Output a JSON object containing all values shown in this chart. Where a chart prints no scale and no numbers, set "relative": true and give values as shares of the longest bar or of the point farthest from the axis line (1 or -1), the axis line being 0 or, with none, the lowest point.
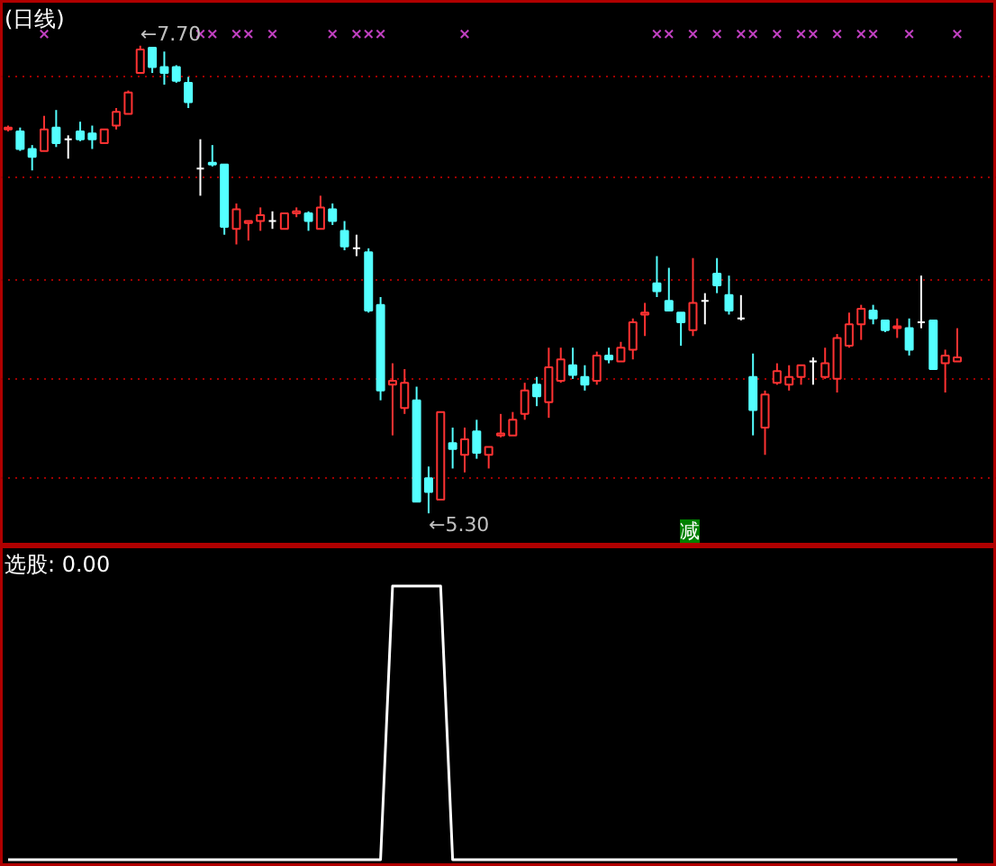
{
  "chart_data": [
    {
      "type": "candlestick",
      "title": "(日线)",
      "categories": [
        null,
        null,
        null,
        null,
        null,
        null,
        null,
        null,
        null,
        null,
        null,
        null,
        null,
        null,
        null,
        null,
        null,
        null,
        null,
        null,
        null,
        null,
        null,
        null,
        null,
        null,
        null,
        null,
        null,
        null,
        null,
        null,
        null,
        null,
        null,
        null,
        null,
        null,
        null,
        null,
        null,
        null,
        null,
        null,
        null,
        null,
        null,
        null,
        null,
        null,
        null,
        null,
        null,
        null,
        null,
        null,
        null,
        null,
        null,
        null,
        null,
        null,
        null,
        null,
        null,
        null,
        null,
        null,
        null,
        null,
        null,
        null,
        null,
        null,
        null,
        null,
        null,
        null,
        null,
        null
      ],
      "ohlc": [
        [
          7.27,
          7.29,
          7.26,
          7.28
        ],
        [
          7.26,
          7.28,
          7.16,
          7.17
        ],
        [
          7.17,
          7.19,
          7.06,
          7.13
        ],
        [
          7.16,
          7.34,
          7.16,
          7.27
        ],
        [
          7.28,
          7.37,
          7.18,
          7.2
        ],
        [
          7.22,
          7.24,
          7.12,
          7.22
        ],
        [
          7.26,
          7.31,
          7.21,
          7.22
        ],
        [
          7.25,
          7.29,
          7.17,
          7.22
        ],
        [
          7.2,
          7.27,
          7.2,
          7.27
        ],
        [
          7.29,
          7.38,
          7.27,
          7.36
        ],
        [
          7.35,
          7.47,
          7.35,
          7.46
        ],
        [
          7.56,
          7.7,
          7.56,
          7.68
        ],
        [
          7.69,
          7.69,
          7.56,
          7.59
        ],
        [
          7.59,
          7.67,
          7.5,
          7.56
        ],
        [
          7.59,
          7.6,
          7.51,
          7.52
        ],
        [
          7.51,
          7.54,
          7.38,
          7.41
        ],
        [
          7.07,
          7.22,
          6.93,
          7.07
        ],
        [
          7.1,
          7.19,
          7.08,
          7.09
        ],
        [
          7.09,
          7.09,
          6.73,
          6.77
        ],
        [
          6.76,
          6.89,
          6.68,
          6.86
        ],
        [
          6.79,
          6.8,
          6.7,
          6.8
        ],
        [
          6.8,
          6.87,
          6.75,
          6.83
        ],
        [
          6.8,
          6.85,
          6.76,
          6.8
        ],
        [
          6.76,
          6.84,
          6.76,
          6.84
        ],
        [
          6.84,
          6.87,
          6.82,
          6.85
        ],
        [
          6.84,
          6.85,
          6.75,
          6.8
        ],
        [
          6.76,
          6.93,
          6.76,
          6.87
        ],
        [
          6.86,
          6.89,
          6.78,
          6.8
        ],
        [
          6.75,
          6.8,
          6.65,
          6.67
        ],
        [
          6.66,
          6.73,
          6.62,
          6.66
        ],
        [
          6.64,
          6.66,
          6.33,
          6.34
        ],
        [
          6.37,
          6.41,
          5.88,
          5.93
        ],
        [
          5.96,
          6.07,
          5.7,
          5.98
        ],
        [
          5.84,
          6.04,
          5.81,
          5.97
        ],
        [
          5.88,
          5.95,
          5.36,
          5.36
        ],
        [
          5.48,
          5.54,
          5.3,
          5.41
        ],
        [
          5.37,
          5.82,
          5.37,
          5.82
        ],
        [
          5.66,
          5.74,
          5.53,
          5.63
        ],
        [
          5.6,
          5.74,
          5.51,
          5.68
        ],
        [
          5.72,
          5.78,
          5.58,
          5.61
        ],
        [
          5.6,
          5.64,
          5.53,
          5.64
        ],
        [
          5.7,
          5.81,
          5.69,
          5.71
        ],
        [
          5.7,
          5.82,
          5.7,
          5.78
        ],
        [
          5.81,
          5.97,
          5.78,
          5.93
        ],
        [
          5.96,
          6.0,
          5.85,
          5.9
        ],
        [
          5.87,
          6.15,
          5.79,
          6.05
        ],
        [
          5.98,
          6.15,
          5.97,
          6.09
        ],
        [
          6.06,
          6.15,
          5.99,
          6.01
        ],
        [
          6.0,
          6.06,
          5.93,
          5.96
        ],
        [
          5.98,
          6.13,
          5.96,
          6.11
        ],
        [
          6.11,
          6.15,
          6.07,
          6.09
        ],
        [
          6.08,
          6.18,
          6.08,
          6.15
        ],
        [
          6.14,
          6.3,
          6.09,
          6.28
        ],
        [
          6.32,
          6.38,
          6.21,
          6.33
        ],
        [
          6.48,
          6.62,
          6.41,
          6.44
        ],
        [
          6.39,
          6.56,
          6.34,
          6.34
        ],
        [
          6.33,
          6.33,
          6.16,
          6.28
        ],
        [
          6.24,
          6.61,
          6.21,
          6.38
        ],
        [
          6.39,
          6.43,
          6.27,
          6.39
        ],
        [
          6.53,
          6.61,
          6.43,
          6.47
        ],
        [
          6.42,
          6.52,
          6.32,
          6.34
        ],
        [
          6.3,
          6.42,
          6.29,
          6.3
        ],
        [
          6.0,
          6.12,
          5.7,
          5.83
        ],
        [
          5.74,
          5.93,
          5.6,
          5.91
        ],
        [
          5.97,
          6.07,
          5.96,
          6.03
        ],
        [
          5.96,
          6.06,
          5.93,
          6.0
        ],
        [
          6.0,
          6.06,
          5.96,
          6.06
        ],
        [
          6.08,
          6.1,
          5.96,
          6.08
        ],
        [
          6.0,
          6.15,
          5.99,
          6.07
        ],
        [
          5.99,
          6.22,
          5.92,
          6.2
        ],
        [
          6.16,
          6.33,
          6.15,
          6.27
        ],
        [
          6.27,
          6.37,
          6.19,
          6.35
        ],
        [
          6.34,
          6.37,
          6.27,
          6.3
        ],
        [
          6.29,
          6.29,
          6.23,
          6.24
        ],
        [
          6.25,
          6.3,
          6.2,
          6.26
        ],
        [
          6.25,
          6.3,
          6.11,
          6.14
        ],
        [
          6.28,
          6.52,
          6.25,
          6.28
        ],
        [
          6.29,
          6.29,
          6.04,
          6.04
        ],
        [
          6.07,
          6.14,
          5.92,
          6.11
        ],
        [
          6.08,
          6.25,
          6.08,
          6.1
        ]
      ],
      "colors": [
        "#ff3232",
        "#54ffff",
        "#54ffff",
        "#ff3232",
        "#54ffff",
        "#ffffff",
        "#54ffff",
        "#54ffff",
        "#ff3232",
        "#ff3232",
        "#ff3232",
        "#ff3232",
        "#54ffff",
        "#54ffff",
        "#54ffff",
        "#54ffff",
        "#ffffff",
        "#54ffff",
        "#54ffff",
        "#ff3232",
        "#ff3232",
        "#ff3232",
        "#ffffff",
        "#ff3232",
        "#ff3232",
        "#54ffff",
        "#ff3232",
        "#54ffff",
        "#54ffff",
        "#ffffff",
        "#54ffff",
        "#54ffff",
        "#ff3232",
        "#ff3232",
        "#54ffff",
        "#54ffff",
        "#ff3232",
        "#54ffff",
        "#ff3232",
        "#54ffff",
        "#ff3232",
        "#ff3232",
        "#ff3232",
        "#ff3232",
        "#54ffff",
        "#ff3232",
        "#ff3232",
        "#54ffff",
        "#54ffff",
        "#ff3232",
        "#54ffff",
        "#ff3232",
        "#ff3232",
        "#ff3232",
        "#54ffff",
        "#54ffff",
        "#54ffff",
        "#ff3232",
        "#ffffff",
        "#54ffff",
        "#54ffff",
        "#ffffff",
        "#54ffff",
        "#ff3232",
        "#ff3232",
        "#ff3232",
        "#ff3232",
        "#ffffff",
        "#ff3232",
        "#ff3232",
        "#ff3232",
        "#ff3232",
        "#54ffff",
        "#54ffff",
        "#ff3232",
        "#54ffff",
        "#ffffff",
        "#54ffff",
        "#ff3232",
        "#ff3232"
      ],
      "series": [
        {
          "type": "scatter",
          "marker": "cross",
          "color": "#c040c0",
          "values": [
            null,
            null,
            null,
            7.76,
            null,
            null,
            null,
            null,
            null,
            null,
            null,
            null,
            null,
            null,
            null,
            null,
            7.76,
            7.76,
            null,
            7.76,
            7.76,
            null,
            7.76,
            null,
            null,
            null,
            null,
            7.76,
            null,
            7.76,
            7.76,
            7.76,
            null,
            null,
            null,
            null,
            null,
            null,
            7.76,
            null,
            null,
            null,
            null,
            null,
            null,
            null,
            null,
            null,
            null,
            null,
            null,
            null,
            null,
            null,
            7.76,
            7.76,
            null,
            7.76,
            null,
            7.76,
            null,
            7.76,
            7.76,
            null,
            7.76,
            null,
            7.76,
            7.76,
            null,
            7.76,
            null,
            7.76,
            7.76,
            null,
            null,
            7.76,
            null,
            null,
            null,
            7.76
          ]
        }
      ],
      "ylim": [
        5.13,
        7.93
      ],
      "yticks": [
        {
          "value": 7.54,
          "label": null
        },
        {
          "value": 7.02,
          "label": null
        },
        {
          "value": 6.5,
          "label": null
        },
        {
          "value": 5.99,
          "label": null
        },
        {
          "value": 5.48,
          "label": null
        }
      ],
      "grid": "y",
      "tick_labels": false,
      "annotations": [
        "←7.70",
        "←5.30",
        "减"
      ]
    },
    {
      "type": "line",
      "title": "选股: 0.00",
      "categories": [
        null,
        null,
        null,
        null,
        null,
        null,
        null,
        null,
        null,
        null,
        null,
        null,
        null,
        null,
        null,
        null,
        null,
        null,
        null,
        null,
        null,
        null,
        null,
        null,
        null,
        null,
        null,
        null,
        null,
        null,
        null,
        null,
        null,
        null,
        null,
        null,
        null,
        null,
        null,
        null,
        null,
        null,
        null,
        null,
        null,
        null,
        null,
        null,
        null,
        null,
        null,
        null,
        null,
        null,
        null,
        null,
        null,
        null,
        null,
        null,
        null,
        null,
        null,
        null,
        null,
        null,
        null,
        null,
        null,
        null,
        null,
        null,
        null,
        null,
        null,
        null,
        null,
        null,
        null,
        null
      ],
      "values": [
        0,
        0,
        0,
        0,
        0,
        0,
        0,
        0,
        0,
        0,
        0,
        0,
        0,
        0,
        0,
        0,
        0,
        0,
        0,
        0,
        0,
        0,
        0,
        0,
        0,
        0,
        0,
        0,
        0,
        0,
        0,
        0,
        1,
        1,
        1,
        1,
        1,
        0,
        0,
        0,
        0,
        0,
        0,
        0,
        0,
        0,
        0,
        0,
        0,
        0,
        0,
        0,
        0,
        0,
        0,
        0,
        0,
        0,
        0,
        0,
        0,
        0,
        0,
        0,
        0,
        0,
        0,
        0,
        0,
        0,
        0,
        0,
        0,
        0,
        0,
        0,
        0,
        0,
        0,
        0
      ],
      "color": "#ffffff",
      "relative": true,
      "tick_labels": false
    }
  ]
}
